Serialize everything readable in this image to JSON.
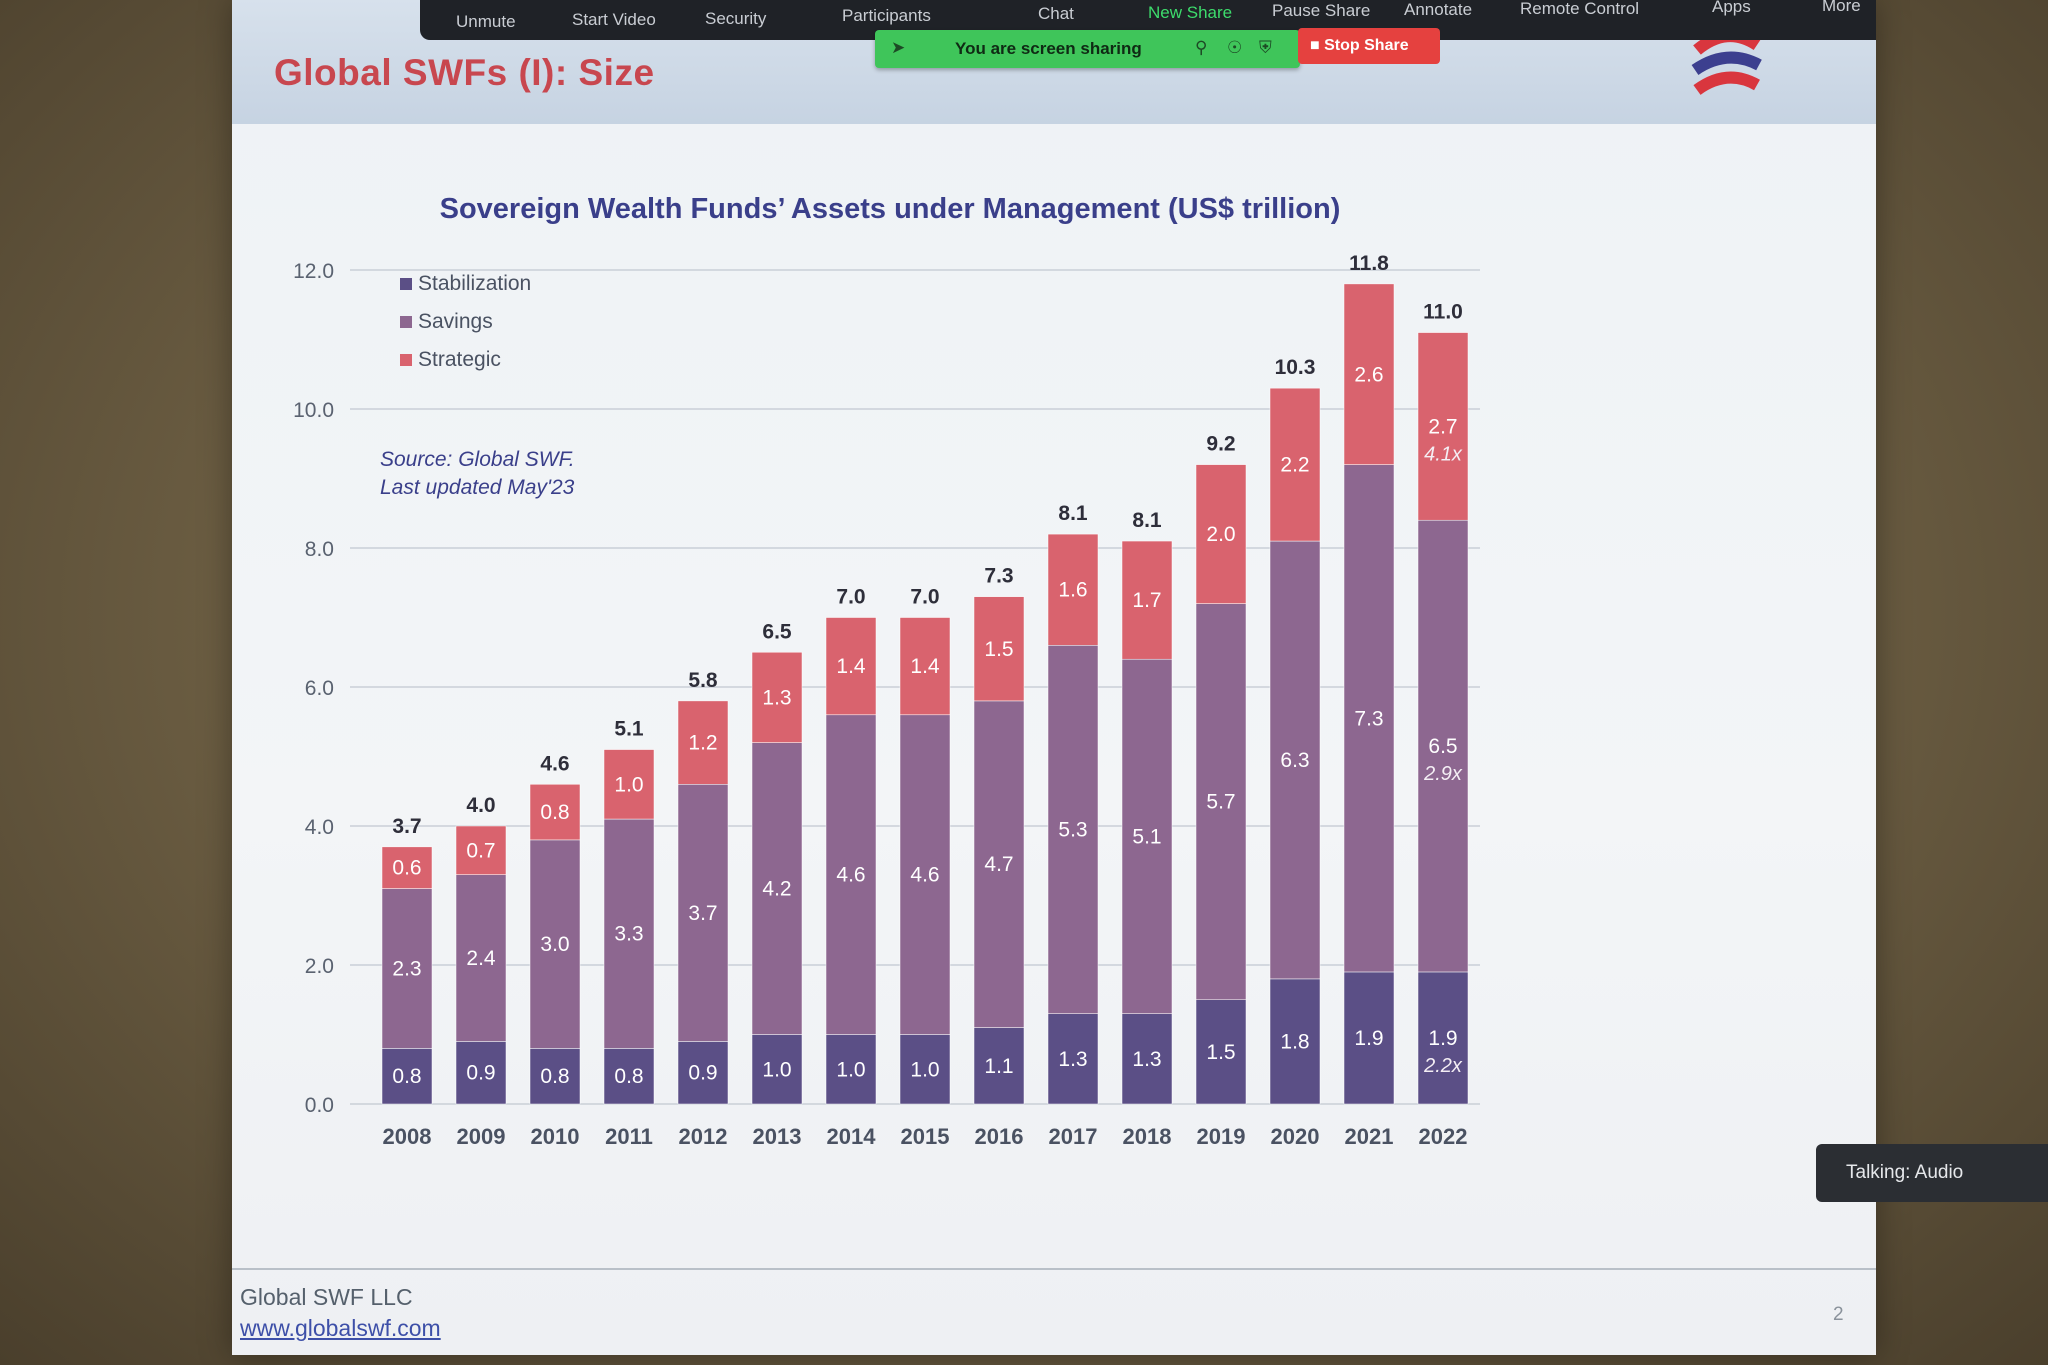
{
  "slide": {
    "title": "Global SWFs (I): Size",
    "footer_company": "Global SWF LLC",
    "footer_url": "www.globalswf.com",
    "page_number": "2"
  },
  "zoom": {
    "toolbar": [
      "Unmute",
      "Start Video",
      "Security",
      "Participants",
      "Chat",
      "New Share",
      "Pause Share",
      "Annotate",
      "Remote Control",
      "Apps",
      "More"
    ],
    "sharing_label": "You are screen sharing",
    "stop_share_label": "Stop Share",
    "talking": "Talking: Audio",
    "accent": "#3ddc6c"
  },
  "chart_data": {
    "type": "bar",
    "stacked": true,
    "title": "Sovereign Wealth Funds’ Assets under Management (US$ trillion)",
    "categories": [
      "2008",
      "2009",
      "2010",
      "2011",
      "2012",
      "2013",
      "2014",
      "2015",
      "2016",
      "2017",
      "2018",
      "2019",
      "2020",
      "2021",
      "2022"
    ],
    "series": [
      {
        "name": "Stabilization",
        "color": "#5b4f86",
        "values": [
          0.8,
          0.9,
          0.8,
          0.8,
          0.9,
          1.0,
          1.0,
          1.0,
          1.1,
          1.3,
          1.3,
          1.5,
          1.8,
          1.9,
          1.9
        ]
      },
      {
        "name": "Savings",
        "color": "#8d6790",
        "values": [
          2.3,
          2.4,
          3.0,
          3.3,
          3.7,
          4.2,
          4.6,
          4.6,
          4.7,
          5.3,
          5.1,
          5.7,
          6.3,
          7.3,
          6.5
        ]
      },
      {
        "name": "Strategic",
        "color": "#d9636e",
        "values": [
          0.6,
          0.7,
          0.8,
          1.0,
          1.2,
          1.3,
          1.4,
          1.4,
          1.5,
          1.6,
          1.7,
          2.0,
          2.2,
          2.6,
          2.7
        ]
      }
    ],
    "totals": [
      "3.7",
      "4.0",
      "4.6",
      "5.1",
      "5.8",
      "6.5",
      "7.0",
      "7.0",
      "7.3",
      "8.1",
      "8.1",
      "9.2",
      "10.3",
      "11.8",
      "11.0"
    ],
    "multipliers": {
      "Stabilization": "2.2x",
      "Savings": "2.9x",
      "Strategic": "4.1x"
    },
    "ylim": [
      0,
      12
    ],
    "yticks": [
      "0.0",
      "2.0",
      "4.0",
      "6.0",
      "8.0",
      "10.0",
      "12.0"
    ],
    "source_note": [
      "Source: Global SWF.",
      "Last updated May'23"
    ],
    "legend_position": "top-left",
    "grid": true
  }
}
